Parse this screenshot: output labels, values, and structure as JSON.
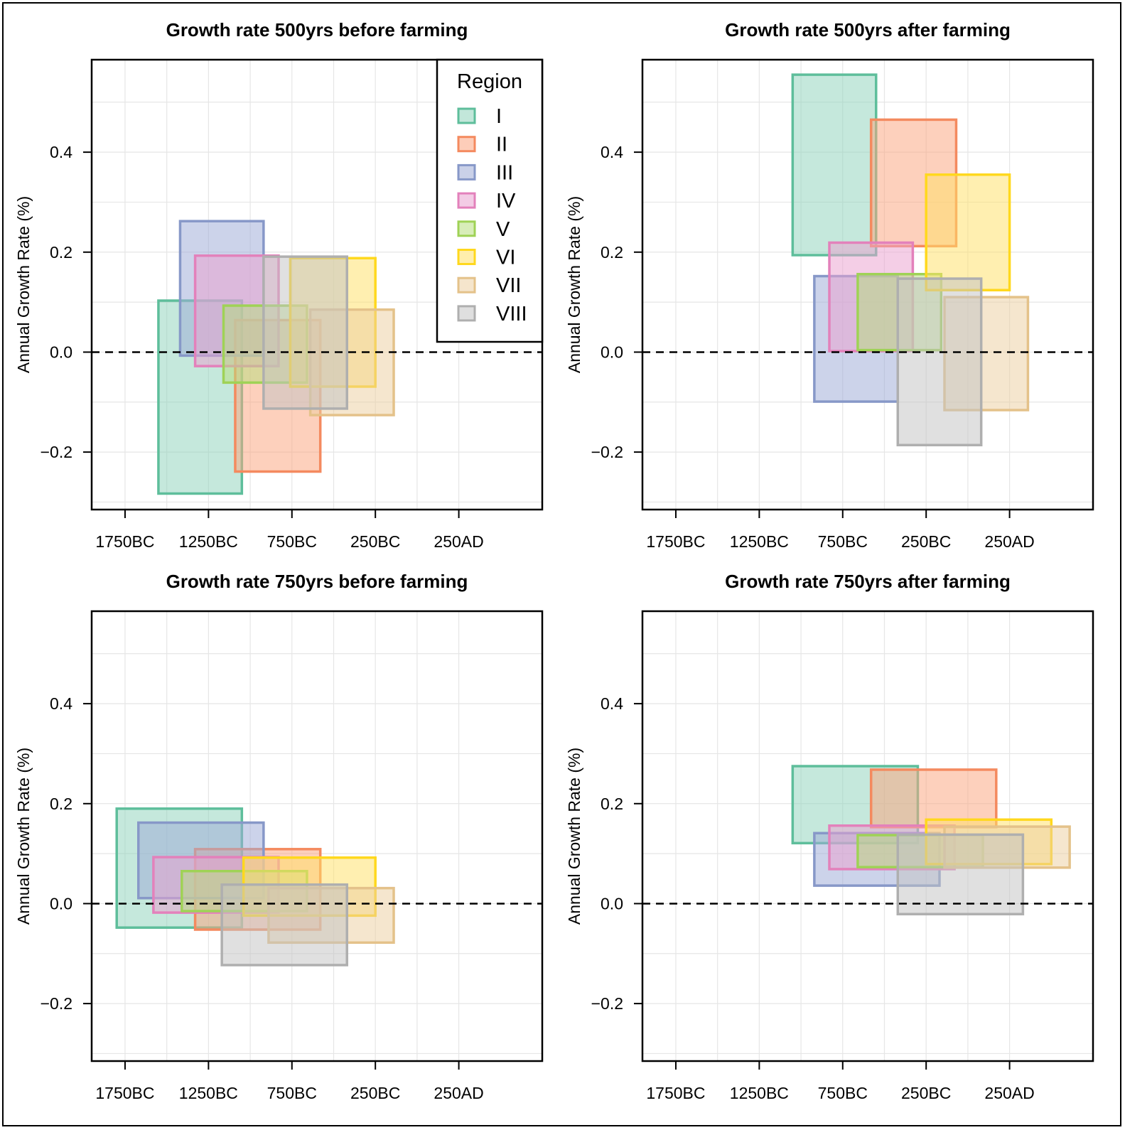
{
  "chart_data": [
    {
      "type": "range-box",
      "title": "Growth rate 500yrs before farming",
      "ylabel": "Annual Growth Rate (%)",
      "xlabel": "",
      "ylim": [
        -0.315,
        0.585
      ],
      "xlim": [
        -1950,
        750
      ],
      "xticks": [
        -1750,
        -1250,
        -750,
        -250,
        250
      ],
      "xtick_labels": [
        "1750BC",
        "1250BC",
        "750BC",
        "250BC",
        "250AD"
      ],
      "yticks": [
        -0.2,
        0.0,
        0.2,
        0.4
      ],
      "ytick_labels": [
        "−0.2",
        "0.0",
        "0.2",
        "0.4"
      ],
      "reference_line_y": 0.0,
      "legend": {
        "title": "Region",
        "position": "top-right"
      },
      "series": [
        {
          "name": "I",
          "x0": -1550,
          "x1": -1050,
          "y0": -0.283,
          "y1": 0.103
        },
        {
          "name": "II",
          "x0": -1090,
          "x1": -580,
          "y0": -0.239,
          "y1": 0.064
        },
        {
          "name": "III",
          "x0": -1420,
          "x1": -920,
          "y0": -0.007,
          "y1": 0.262
        },
        {
          "name": "IV",
          "x0": -1330,
          "x1": -830,
          "y0": -0.028,
          "y1": 0.193
        },
        {
          "name": "V",
          "x0": -1160,
          "x1": -660,
          "y0": -0.061,
          "y1": 0.093
        },
        {
          "name": "VI",
          "x0": -760,
          "x1": -250,
          "y0": -0.069,
          "y1": 0.188
        },
        {
          "name": "VII",
          "x0": -640,
          "x1": -140,
          "y0": -0.126,
          "y1": 0.085
        },
        {
          "name": "VIII",
          "x0": -920,
          "x1": -420,
          "y0": -0.113,
          "y1": 0.191
        }
      ]
    },
    {
      "type": "range-box",
      "title": "Growth rate 500yrs after farming",
      "ylabel": "Annual Growth Rate (%)",
      "xlabel": "",
      "ylim": [
        -0.315,
        0.585
      ],
      "xlim": [
        -1950,
        750
      ],
      "xticks": [
        -1750,
        -1250,
        -750,
        -250,
        250
      ],
      "xtick_labels": [
        "1750BC",
        "1250BC",
        "750BC",
        "250BC",
        "250AD"
      ],
      "yticks": [
        -0.2,
        0.0,
        0.2,
        0.4
      ],
      "ytick_labels": [
        "−0.2",
        "0.0",
        "0.2",
        "0.4"
      ],
      "reference_line_y": 0.0,
      "series": [
        {
          "name": "I",
          "x0": -1050,
          "x1": -550,
          "y0": 0.194,
          "y1": 0.555
        },
        {
          "name": "II",
          "x0": -580,
          "x1": -70,
          "y0": 0.212,
          "y1": 0.465
        },
        {
          "name": "III",
          "x0": -920,
          "x1": -420,
          "y0": -0.099,
          "y1": 0.152
        },
        {
          "name": "IV",
          "x0": -830,
          "x1": -330,
          "y0": 0.002,
          "y1": 0.219
        },
        {
          "name": "V",
          "x0": -660,
          "x1": -160,
          "y0": 0.004,
          "y1": 0.156
        },
        {
          "name": "VI",
          "x0": -250,
          "x1": 250,
          "y0": 0.124,
          "y1": 0.355
        },
        {
          "name": "VII",
          "x0": -140,
          "x1": 360,
          "y0": -0.116,
          "y1": 0.11
        },
        {
          "name": "VIII",
          "x0": -420,
          "x1": 80,
          "y0": -0.186,
          "y1": 0.147
        }
      ]
    },
    {
      "type": "range-box",
      "title": "Growth rate 750yrs before farming",
      "ylabel": "Annual Growth Rate (%)",
      "xlabel": "",
      "ylim": [
        -0.315,
        0.585
      ],
      "xlim": [
        -1950,
        750
      ],
      "xticks": [
        -1750,
        -1250,
        -750,
        -250,
        250
      ],
      "xtick_labels": [
        "1750BC",
        "1250BC",
        "750BC",
        "250BC",
        "250AD"
      ],
      "yticks": [
        -0.2,
        0.0,
        0.2,
        0.4
      ],
      "ytick_labels": [
        "−0.2",
        "0.0",
        "0.2",
        "0.4"
      ],
      "reference_line_y": 0.0,
      "series": [
        {
          "name": "I",
          "x0": -1800,
          "x1": -1050,
          "y0": -0.048,
          "y1": 0.19
        },
        {
          "name": "II",
          "x0": -1330,
          "x1": -580,
          "y0": -0.052,
          "y1": 0.109
        },
        {
          "name": "III",
          "x0": -1670,
          "x1": -920,
          "y0": 0.011,
          "y1": 0.162
        },
        {
          "name": "IV",
          "x0": -1580,
          "x1": -830,
          "y0": -0.018,
          "y1": 0.093
        },
        {
          "name": "V",
          "x0": -1410,
          "x1": -660,
          "y0": -0.015,
          "y1": 0.065
        },
        {
          "name": "VI",
          "x0": -1040,
          "x1": -250,
          "y0": -0.024,
          "y1": 0.092
        },
        {
          "name": "VII",
          "x0": -890,
          "x1": -140,
          "y0": -0.078,
          "y1": 0.031
        },
        {
          "name": "VIII",
          "x0": -1170,
          "x1": -420,
          "y0": -0.123,
          "y1": 0.038
        }
      ]
    },
    {
      "type": "range-box",
      "title": "Growth rate 750yrs after farming",
      "ylabel": "Annual Growth Rate (%)",
      "xlabel": "",
      "ylim": [
        -0.315,
        0.585
      ],
      "xlim": [
        -1950,
        750
      ],
      "xticks": [
        -1750,
        -1250,
        -750,
        -250,
        250
      ],
      "xtick_labels": [
        "1750BC",
        "1250BC",
        "750BC",
        "250BC",
        "250AD"
      ],
      "yticks": [
        -0.2,
        0.0,
        0.2,
        0.4
      ],
      "ytick_labels": [
        "−0.2",
        "0.0",
        "0.2",
        "0.4"
      ],
      "reference_line_y": 0.0,
      "series": [
        {
          "name": "I",
          "x0": -1050,
          "x1": -300,
          "y0": 0.121,
          "y1": 0.275
        },
        {
          "name": "II",
          "x0": -580,
          "x1": 170,
          "y0": 0.153,
          "y1": 0.268
        },
        {
          "name": "III",
          "x0": -920,
          "x1": -170,
          "y0": 0.036,
          "y1": 0.141
        },
        {
          "name": "IV",
          "x0": -830,
          "x1": -80,
          "y0": 0.069,
          "y1": 0.156
        },
        {
          "name": "V",
          "x0": -660,
          "x1": 90,
          "y0": 0.073,
          "y1": 0.137
        },
        {
          "name": "VI",
          "x0": -250,
          "x1": 500,
          "y0": 0.079,
          "y1": 0.168
        },
        {
          "name": "VII",
          "x0": -140,
          "x1": 610,
          "y0": 0.072,
          "y1": 0.154
        },
        {
          "name": "VIII",
          "x0": -420,
          "x1": 330,
          "y0": -0.021,
          "y1": 0.138
        }
      ]
    }
  ],
  "legend": {
    "title": "Region",
    "items": [
      "I",
      "II",
      "III",
      "IV",
      "V",
      "VI",
      "VII",
      "VIII"
    ]
  },
  "colors": {
    "I": {
      "fill": "#8fd3bb",
      "stroke": "#5ebe9b"
    },
    "II": {
      "fill": "#fca47f",
      "stroke": "#f48a5f"
    },
    "III": {
      "fill": "#9eabd6",
      "stroke": "#8798c8"
    },
    "IV": {
      "fill": "#eaa2d0",
      "stroke": "#e381bb"
    },
    "V": {
      "fill": "#b8df7f",
      "stroke": "#9fd256"
    },
    "VI": {
      "fill": "#ffe068",
      "stroke": "#ffd81e"
    },
    "VII": {
      "fill": "#ecd0a2",
      "stroke": "#e4c28a"
    },
    "VIII": {
      "fill": "#c4c4c4",
      "stroke": "#afafaf"
    }
  }
}
